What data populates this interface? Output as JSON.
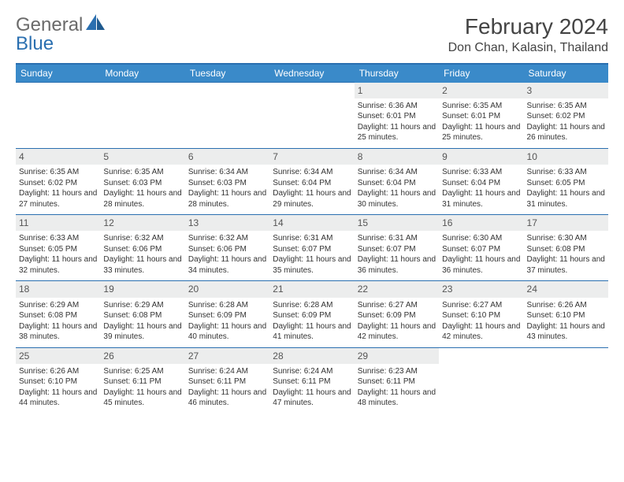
{
  "logo": {
    "text1": "General",
    "text2": "Blue"
  },
  "title": "February 2024",
  "location": "Don Chan, Kalasin, Thailand",
  "colors": {
    "header_bg": "#3a8ac9",
    "header_text": "#ffffff",
    "border": "#2a6fb0",
    "daynum_bg": "#eceded",
    "text": "#333333"
  },
  "weekdays": [
    "Sunday",
    "Monday",
    "Tuesday",
    "Wednesday",
    "Thursday",
    "Friday",
    "Saturday"
  ],
  "weeks": [
    [
      null,
      null,
      null,
      null,
      {
        "n": "1",
        "sunrise": "6:36 AM",
        "sunset": "6:01 PM",
        "dl": "11 hours and 25 minutes."
      },
      {
        "n": "2",
        "sunrise": "6:35 AM",
        "sunset": "6:01 PM",
        "dl": "11 hours and 25 minutes."
      },
      {
        "n": "3",
        "sunrise": "6:35 AM",
        "sunset": "6:02 PM",
        "dl": "11 hours and 26 minutes."
      }
    ],
    [
      {
        "n": "4",
        "sunrise": "6:35 AM",
        "sunset": "6:02 PM",
        "dl": "11 hours and 27 minutes."
      },
      {
        "n": "5",
        "sunrise": "6:35 AM",
        "sunset": "6:03 PM",
        "dl": "11 hours and 28 minutes."
      },
      {
        "n": "6",
        "sunrise": "6:34 AM",
        "sunset": "6:03 PM",
        "dl": "11 hours and 28 minutes."
      },
      {
        "n": "7",
        "sunrise": "6:34 AM",
        "sunset": "6:04 PM",
        "dl": "11 hours and 29 minutes."
      },
      {
        "n": "8",
        "sunrise": "6:34 AM",
        "sunset": "6:04 PM",
        "dl": "11 hours and 30 minutes."
      },
      {
        "n": "9",
        "sunrise": "6:33 AM",
        "sunset": "6:04 PM",
        "dl": "11 hours and 31 minutes."
      },
      {
        "n": "10",
        "sunrise": "6:33 AM",
        "sunset": "6:05 PM",
        "dl": "11 hours and 31 minutes."
      }
    ],
    [
      {
        "n": "11",
        "sunrise": "6:33 AM",
        "sunset": "6:05 PM",
        "dl": "11 hours and 32 minutes."
      },
      {
        "n": "12",
        "sunrise": "6:32 AM",
        "sunset": "6:06 PM",
        "dl": "11 hours and 33 minutes."
      },
      {
        "n": "13",
        "sunrise": "6:32 AM",
        "sunset": "6:06 PM",
        "dl": "11 hours and 34 minutes."
      },
      {
        "n": "14",
        "sunrise": "6:31 AM",
        "sunset": "6:07 PM",
        "dl": "11 hours and 35 minutes."
      },
      {
        "n": "15",
        "sunrise": "6:31 AM",
        "sunset": "6:07 PM",
        "dl": "11 hours and 36 minutes."
      },
      {
        "n": "16",
        "sunrise": "6:30 AM",
        "sunset": "6:07 PM",
        "dl": "11 hours and 36 minutes."
      },
      {
        "n": "17",
        "sunrise": "6:30 AM",
        "sunset": "6:08 PM",
        "dl": "11 hours and 37 minutes."
      }
    ],
    [
      {
        "n": "18",
        "sunrise": "6:29 AM",
        "sunset": "6:08 PM",
        "dl": "11 hours and 38 minutes."
      },
      {
        "n": "19",
        "sunrise": "6:29 AM",
        "sunset": "6:08 PM",
        "dl": "11 hours and 39 minutes."
      },
      {
        "n": "20",
        "sunrise": "6:28 AM",
        "sunset": "6:09 PM",
        "dl": "11 hours and 40 minutes."
      },
      {
        "n": "21",
        "sunrise": "6:28 AM",
        "sunset": "6:09 PM",
        "dl": "11 hours and 41 minutes."
      },
      {
        "n": "22",
        "sunrise": "6:27 AM",
        "sunset": "6:09 PM",
        "dl": "11 hours and 42 minutes."
      },
      {
        "n": "23",
        "sunrise": "6:27 AM",
        "sunset": "6:10 PM",
        "dl": "11 hours and 42 minutes."
      },
      {
        "n": "24",
        "sunrise": "6:26 AM",
        "sunset": "6:10 PM",
        "dl": "11 hours and 43 minutes."
      }
    ],
    [
      {
        "n": "25",
        "sunrise": "6:26 AM",
        "sunset": "6:10 PM",
        "dl": "11 hours and 44 minutes."
      },
      {
        "n": "26",
        "sunrise": "6:25 AM",
        "sunset": "6:11 PM",
        "dl": "11 hours and 45 minutes."
      },
      {
        "n": "27",
        "sunrise": "6:24 AM",
        "sunset": "6:11 PM",
        "dl": "11 hours and 46 minutes."
      },
      {
        "n": "28",
        "sunrise": "6:24 AM",
        "sunset": "6:11 PM",
        "dl": "11 hours and 47 minutes."
      },
      {
        "n": "29",
        "sunrise": "6:23 AM",
        "sunset": "6:11 PM",
        "dl": "11 hours and 48 minutes."
      },
      null,
      null
    ]
  ],
  "labels": {
    "sunrise": "Sunrise:",
    "sunset": "Sunset:",
    "daylight": "Daylight:"
  }
}
